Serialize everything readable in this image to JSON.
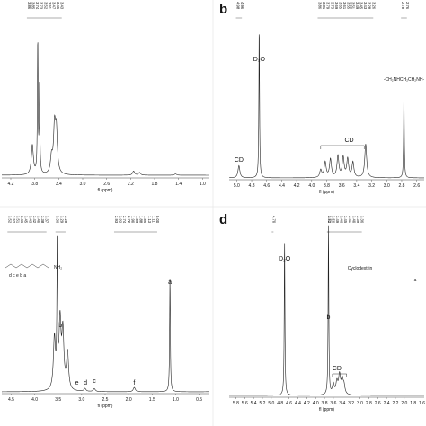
{
  "chart_data": [
    {
      "panel": "a",
      "panel_letter": "",
      "type": "line",
      "xlabel": "fl (ppm)",
      "x_ticks": [
        "4.2",
        "3.8",
        "3.4",
        "3.0",
        "2.6",
        "2.2",
        "1.8",
        "1.4",
        "1.0"
      ],
      "xlim": [
        4.35,
        0.9
      ],
      "peak_labels": [
        "3.86",
        "3.85",
        "3.74",
        "3.73",
        "3.52",
        "3.51",
        "3.47",
        "3.45",
        "3.43"
      ],
      "peaks": [
        [
          3.84,
          0.22
        ],
        [
          3.75,
          1.0
        ],
        [
          3.72,
          0.65
        ],
        [
          3.52,
          0.12
        ],
        [
          3.47,
          0.33
        ],
        [
          3.44,
          0.3
        ],
        [
          2.15,
          0.03
        ],
        [
          2.05,
          0.02
        ],
        [
          1.45,
          0.01
        ]
      ],
      "annotations": []
    },
    {
      "panel": "b",
      "panel_letter": "b",
      "type": "line",
      "xlabel": "fl (ppm)",
      "x_ticks": [
        "5.0",
        "4.8",
        "4.6",
        "4.4",
        "4.2",
        "4.0",
        "3.8",
        "3.6",
        "3.4",
        "3.2",
        "3.0",
        "2.8",
        "2.6"
      ],
      "xlim": [
        5.1,
        2.5
      ],
      "peak_labels_left": [
        "4.98",
        "4.96"
      ],
      "peak_labels_mid": [
        "3.86",
        "3.81",
        "3.79",
        "3.75",
        "3.69",
        "3.65",
        "3.61",
        "3.55",
        "3.51",
        "3.49",
        "3.45",
        "3.43",
        "3.28",
        "3.26"
      ],
      "peak_labels_right": [
        "2.78",
        "2.76"
      ],
      "peaks": [
        [
          4.97,
          0.08
        ],
        [
          4.7,
          1.0
        ],
        [
          3.88,
          0.05
        ],
        [
          3.82,
          0.1
        ],
        [
          3.75,
          0.12
        ],
        [
          3.65,
          0.14
        ],
        [
          3.58,
          0.13
        ],
        [
          3.52,
          0.12
        ],
        [
          3.45,
          0.1
        ],
        [
          3.28,
          0.22
        ],
        [
          2.77,
          0.58
        ]
      ],
      "annotations": [
        {
          "text": "CD",
          "x": 4.97
        },
        {
          "text": "D₂O",
          "x": 4.7
        },
        {
          "text": "CD",
          "x": 3.5
        },
        {
          "text": "-CH₂NHCH₂CH₂NH-",
          "x": 2.77
        }
      ]
    },
    {
      "panel": "c",
      "panel_letter": "",
      "type": "line",
      "xlabel": "fl (ppm)",
      "x_ticks": [
        "4.5",
        "4.0",
        "3.5",
        "3.0",
        "2.5",
        "2.0",
        "1.5",
        "1.0",
        "0.5"
      ],
      "xlim": [
        4.7,
        0.3
      ],
      "peak_labels_left": [
        "3.52",
        "3.52",
        "3.51",
        "3.46",
        "3.45",
        "3.43",
        "3.42",
        "3.40",
        "3.38",
        "3.37"
      ],
      "peak_labels_mid": [
        "3.36",
        "3.29",
        "3.28"
      ],
      "peak_labels_right": [
        "2.93",
        "2.92",
        "2.74",
        "2.72",
        "1.90",
        "1.89",
        "1.88",
        "1.86",
        "1.13",
        "1.11",
        "0.00"
      ],
      "peaks": [
        [
          3.58,
          0.35
        ],
        [
          3.52,
          1.0
        ],
        [
          3.46,
          0.45
        ],
        [
          3.4,
          0.38
        ],
        [
          3.3,
          0.25
        ],
        [
          2.93,
          0.02
        ],
        [
          2.73,
          0.02
        ],
        [
          1.88,
          0.03
        ],
        [
          1.12,
          0.78
        ],
        [
          0.0,
          0.95
        ]
      ],
      "annotations": [
        {
          "text": "b",
          "x": 3.45
        },
        {
          "text": "e",
          "x": 3.1
        },
        {
          "text": "d",
          "x": 2.92
        },
        {
          "text": "c",
          "x": 2.73
        },
        {
          "text": "f",
          "x": 1.88
        },
        {
          "text": "a",
          "x": 1.12
        }
      ],
      "structure_text": "NH₂",
      "structure_letters": "d c e b a"
    },
    {
      "panel": "d",
      "panel_letter": "d",
      "type": "line",
      "xlabel": "fl (ppm)",
      "x_ticks": [
        "5.8",
        "5.6",
        "5.4",
        "5.2",
        "5.0",
        "4.8",
        "4.6",
        "4.4",
        "4.2",
        "4.0",
        "3.8",
        "3.6",
        "3.4",
        "3.2",
        "3.0",
        "2.8",
        "2.6",
        "2.4",
        "2.2",
        "2.0",
        "1.8",
        "1.6"
      ],
      "xlim": [
        5.95,
        1.55
      ],
      "peak_labels_left": [
        "4.70"
      ],
      "peak_labels_mid": [
        "3.71"
      ],
      "peak_labels_right": [
        "3.52",
        "3.50",
        "3.49",
        "3.46",
        "3.45",
        "3.41",
        "3.40",
        "3.39",
        "3.36"
      ],
      "peaks": [
        [
          4.7,
          0.92
        ],
        [
          3.71,
          1.0
        ],
        [
          3.6,
          0.06
        ],
        [
          3.52,
          0.07
        ],
        [
          3.46,
          0.11
        ],
        [
          3.4,
          0.08
        ],
        [
          3.36,
          0.05
        ]
      ],
      "annotations": [
        {
          "text": "D₂O",
          "x": 4.7
        },
        {
          "text": "b",
          "x": 3.71
        },
        {
          "text": "CD",
          "x": 3.52
        },
        {
          "text": "Cyclodextrin",
          "x": 3.3
        },
        {
          "text": "a",
          "x": 2.0
        }
      ],
      "structure_text": "Cyclodextrin"
    }
  ]
}
